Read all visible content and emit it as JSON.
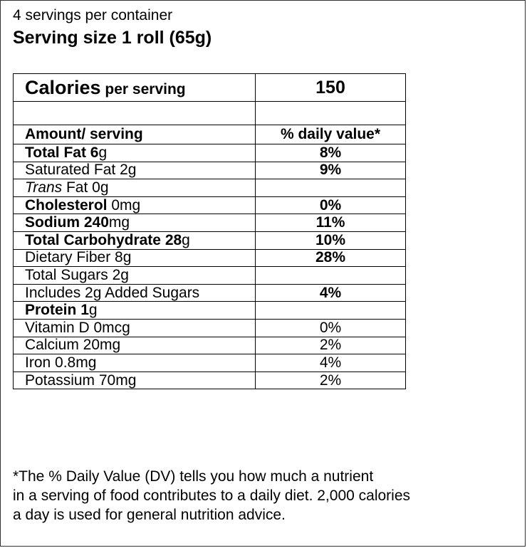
{
  "header": {
    "servings_per_container": "4 servings per container",
    "serving_size": "Serving size 1 roll (65g)"
  },
  "calories": {
    "label": "Calories",
    "per_serving": "per serving",
    "value": "150"
  },
  "columns": {
    "amount": "Amount/ serving",
    "daily_value": "% daily value*"
  },
  "nutrients": [
    {
      "name": "Total Fat ",
      "amount": "6",
      "unit": "g",
      "dv": "8%"
    },
    {
      "name": "Saturated Fat 2g",
      "dv": "9%"
    },
    {
      "name_italic": "Trans",
      "name_rest": " Fat 0g",
      "dv": ""
    },
    {
      "name": "Cholesterol ",
      "amount": "0",
      "unit": "mg",
      "dv": "0%"
    },
    {
      "name": "Sodium ",
      "amount": "240",
      "unit": "mg",
      "dv": "11%"
    },
    {
      "name": "Total Carbohydrate ",
      "amount": "28",
      "unit": "g",
      "dv": "10%"
    },
    {
      "name": "Dietary Fiber 8g",
      "dv": "28%"
    },
    {
      "name": "Total Sugars 2g",
      "dv": ""
    },
    {
      "name": "Includes 2g Added Sugars",
      "dv": "4%"
    },
    {
      "name": "Protein ",
      "amount": "1",
      "unit": "g",
      "dv": ""
    },
    {
      "name": "Vitamin D 0mcg",
      "dv": "0%"
    },
    {
      "name": "Calcium 20mg",
      "dv": "2%"
    },
    {
      "name": "Iron 0.8mg",
      "dv": "4%"
    },
    {
      "name": "Potassium 70mg",
      "dv": "2%"
    }
  ],
  "footnote": {
    "line1": "*The % Daily Value (DV) tells you how much a nutrient",
    "line2": "in a serving of food contributes to a daily diet. 2,000 calories",
    "line3": "a day is used for general nutrition advice."
  }
}
